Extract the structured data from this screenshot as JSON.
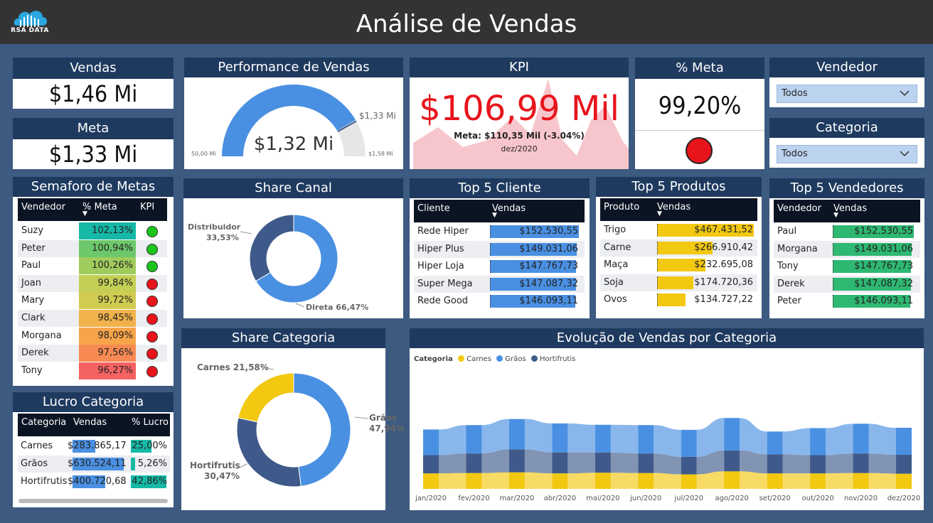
{
  "header": {
    "title": "Análise de Vendas",
    "logo_text": "RSA DATA"
  },
  "vendas": {
    "label": "Vendas",
    "value": "$1,46 Mi"
  },
  "meta": {
    "label": "Meta",
    "value": "$1,33 Mi"
  },
  "performance": {
    "label": "Performance de Vendas",
    "value": "$1,32 Mi",
    "min": "50,00 Mi",
    "max": "$1,58 Mi",
    "target": "$1,33 Mi"
  },
  "kpi": {
    "label": "KPI",
    "value": "$106,99 Mil",
    "meta_text": "Meta: $110,35 Mil (-3.04%)",
    "date": "dez/2020"
  },
  "pct_meta": {
    "label": "% Meta",
    "value": "99,20%",
    "status_color": "#e8141c"
  },
  "vendedor_filter": {
    "label": "Vendedor",
    "value": "Todos"
  },
  "categoria_filter": {
    "label": "Categoria",
    "value": "Todos"
  },
  "semaforo": {
    "label": "Semaforo de Metas",
    "columns": [
      "Vendedor",
      "% Meta",
      "KPI"
    ],
    "rows": [
      {
        "name": "Suzy",
        "pct": "102,13%",
        "color": "#16b8a6",
        "kpi": "#1bc41b"
      },
      {
        "name": "Peter",
        "pct": "100,94%",
        "color": "#6cc86a",
        "kpi": "#1bc41b"
      },
      {
        "name": "Paul",
        "pct": "100,26%",
        "color": "#9fcc5c",
        "kpi": "#1bc41b"
      },
      {
        "name": "Joan",
        "pct": "99,84%",
        "color": "#c3cf55",
        "kpi": "#e8141c"
      },
      {
        "name": "Mary",
        "pct": "99,72%",
        "color": "#d0cc52",
        "kpi": "#e8141c"
      },
      {
        "name": "Clark",
        "pct": "98,45%",
        "color": "#f1b24c",
        "kpi": "#e8141c"
      },
      {
        "name": "Morgana",
        "pct": "98,09%",
        "color": "#f7a44b",
        "kpi": "#e8141c"
      },
      {
        "name": "Derek",
        "pct": "97,56%",
        "color": "#f68a52",
        "kpi": "#e8141c"
      },
      {
        "name": "Tony",
        "pct": "96,27%",
        "color": "#f56262",
        "kpi": "#e8141c"
      }
    ]
  },
  "lucro": {
    "label": "Lucro Categoria",
    "columns": [
      "Categoria",
      "Vendas",
      "% Lucro"
    ],
    "rows": [
      {
        "name": "Carnes",
        "vendas": "$283.865,17",
        "vfrac": 0.45,
        "lucro": "25,00%",
        "lfrac": 0.58
      },
      {
        "name": "Grãos",
        "vendas": "$630.524,11",
        "vfrac": 1.0,
        "lucro": "5,26%",
        "lfrac": 0.12
      },
      {
        "name": "Hortifrutis",
        "vendas": "$400.720,68",
        "vfrac": 0.64,
        "lucro": "42,86%",
        "lfrac": 1.0
      }
    ]
  },
  "share_canal": {
    "label": "Share Canal",
    "distribuidor": "Distribuidor",
    "distribuidor_pct": "33,53%",
    "direta": "Direta 66,47%"
  },
  "share_categoria": {
    "label": "Share Categoria",
    "carnes": "Carnes 21,58%",
    "graos": "Grãos",
    "graos_pct": "47,94%",
    "hortifrutis": "Hortifrutis",
    "hortifrutis_pct": "30,47%"
  },
  "top_cliente": {
    "label": "Top 5 Cliente",
    "columns": [
      "Cliente",
      "Vendas"
    ],
    "bar_color": "#4a90e2",
    "rows": [
      {
        "name": "Rede Hiper",
        "value": "$152.530,55",
        "frac": 1.0
      },
      {
        "name": "Hiper Plus",
        "value": "$149.031,06",
        "frac": 0.977
      },
      {
        "name": "Hiper Loja",
        "value": "$147.767,73",
        "frac": 0.969
      },
      {
        "name": "Super Mega",
        "value": "$147.087,32",
        "frac": 0.964
      },
      {
        "name": "Rede Good",
        "value": "$146.093,11",
        "frac": 0.958
      }
    ]
  },
  "top_produtos": {
    "label": "Top 5 Produtos",
    "columns": [
      "Produto",
      "Vendas"
    ],
    "bar_color": "#f2c811",
    "rows": [
      {
        "name": "Trigo",
        "value": "$467.431,52",
        "frac": 1.0
      },
      {
        "name": "Carne",
        "value": "$266.910,42",
        "frac": 0.571
      },
      {
        "name": "Maça",
        "value": "$232.695,08",
        "frac": 0.498
      },
      {
        "name": "Soja",
        "value": "$174.720,36",
        "frac": 0.374
      },
      {
        "name": "Ovos",
        "value": "$134.727,22",
        "frac": 0.288
      }
    ]
  },
  "top_vendedores": {
    "label": "Top 5 Vendedores",
    "columns": [
      "Vendedor",
      "Vendas"
    ],
    "bar_color": "#2eb872",
    "rows": [
      {
        "name": "Paul",
        "value": "$152.530,55",
        "frac": 1.0
      },
      {
        "name": "Morgana",
        "value": "$149.031,06",
        "frac": 0.977
      },
      {
        "name": "Tony",
        "value": "$147.767,73",
        "frac": 0.969
      },
      {
        "name": "Derek",
        "value": "$147.087,32",
        "frac": 0.964
      },
      {
        "name": "Peter",
        "value": "$146.093,11",
        "frac": 0.958
      }
    ]
  },
  "evolucao": {
    "label": "Evolução de Vendas por Categoria",
    "legend_title": "Categoria",
    "legend": [
      {
        "name": "Carnes",
        "color": "#f2c811"
      },
      {
        "name": "Grãos",
        "color": "#4a90e2"
      },
      {
        "name": "Hortifrutis",
        "color": "#3f5a8a"
      }
    ]
  },
  "chart_data": [
    {
      "type": "pie",
      "title": "Share Canal",
      "labels": [
        "Direta",
        "Distribuidor"
      ],
      "values": [
        66.47,
        33.53
      ],
      "colors": [
        "#4a90e2",
        "#3f5a8a"
      ]
    },
    {
      "type": "pie",
      "title": "Share Categoria",
      "labels": [
        "Grãos",
        "Hortifrutis",
        "Carnes"
      ],
      "values": [
        47.94,
        30.47,
        21.58
      ],
      "colors": [
        "#4a90e2",
        "#3f5a8a",
        "#f2c811"
      ]
    },
    {
      "type": "area",
      "title": "Evolução de Vendas por Categoria",
      "categories": [
        "jan/2020",
        "fev/2020",
        "mar/2020",
        "abr/2020",
        "mai/2020",
        "jun/2020",
        "jul/2020",
        "ago/2020",
        "set/2020",
        "out/2020",
        "nov/2020",
        "dez/2020"
      ],
      "series": [
        {
          "name": "Carnes",
          "values": [
            23000,
            23500,
            24500,
            23000,
            24000,
            23500,
            21500,
            26000,
            23000,
            23000,
            23500,
            22500
          ]
        },
        {
          "name": "Hortifrutis",
          "values": [
            27000,
            29000,
            34000,
            31000,
            30000,
            29000,
            26000,
            31000,
            28000,
            27000,
            29000,
            28000
          ]
        },
        {
          "name": "Grãos",
          "values": [
            38000,
            42000,
            45000,
            43000,
            41000,
            42000,
            40000,
            48000,
            34000,
            40000,
            44000,
            40000
          ]
        }
      ]
    }
  ]
}
